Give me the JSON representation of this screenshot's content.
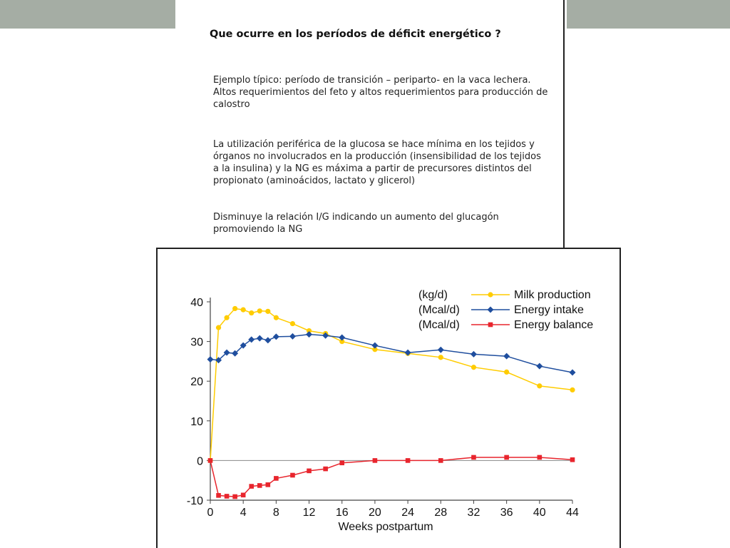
{
  "slide": {
    "title": "Que ocurre en los períodos de déficit energético ?",
    "paragraphs": [
      "Ejemplo típico: período de transición – periparto- en la vaca lechera. Altos requerimientos del feto y altos requerimientos para producción de calostro",
      "La utilización periférica de la glucosa se hace mínima en los tejidos y órganos no involucrados en la producción (insensibilidad de los tejidos a la insulina) y la NG es máxima a partir de precursores distintos del propionato (aminoácidos, lactato y glicerol)",
      "Disminuye la relación I/G indicando un aumento del glucagón promoviendo la NG"
    ]
  },
  "theme": {
    "deco_bar": "#a5ada4",
    "milk": "#ffcc00",
    "energy_intake": "#1f4e9e",
    "energy_balance": "#e8252d"
  },
  "chart_data": {
    "type": "line",
    "title": "",
    "xlabel": "Weeks postpartum",
    "ylabel": "",
    "xlim": [
      0,
      44
    ],
    "ylim": [
      -10,
      40
    ],
    "xticks": [
      0,
      4,
      8,
      12,
      16,
      20,
      24,
      28,
      32,
      36,
      40,
      44
    ],
    "yticks": [
      -10,
      0,
      10,
      20,
      30,
      40
    ],
    "reference_line_y": 0,
    "grid": false,
    "legend_position": "top-right",
    "series": [
      {
        "name": "Milk production",
        "unit": "(kg/d)",
        "color_key": "milk",
        "marker": "circle",
        "x": [
          0,
          1,
          2,
          3,
          4,
          5,
          6,
          7,
          8,
          10,
          12,
          14,
          16,
          20,
          24,
          28,
          32,
          36,
          40,
          44
        ],
        "y": [
          0,
          33.5,
          36,
          38.3,
          38,
          37.2,
          37.7,
          37.6,
          36,
          34.5,
          32.7,
          32,
          30,
          28,
          27,
          26,
          23.5,
          22.3,
          18.8,
          17.8
        ]
      },
      {
        "name": "Energy intake",
        "unit": "(Mcal/d)",
        "color_key": "energy_intake",
        "marker": "diamond",
        "x": [
          0,
          1,
          2,
          3,
          4,
          5,
          6,
          7,
          8,
          10,
          12,
          14,
          16,
          20,
          24,
          28,
          32,
          36,
          40,
          44
        ],
        "y": [
          25.5,
          25.3,
          27.2,
          27,
          29,
          30.5,
          30.8,
          30.3,
          31.2,
          31.3,
          31.8,
          31.5,
          31,
          29,
          27.2,
          27.9,
          26.8,
          26.3,
          23.8,
          22.2
        ]
      },
      {
        "name": "Energy balance",
        "unit": "(Mcal/d)",
        "color_key": "energy_balance",
        "marker": "square",
        "x": [
          0,
          1,
          2,
          3,
          4,
          5,
          6,
          7,
          8,
          10,
          12,
          14,
          16,
          20,
          24,
          28,
          32,
          36,
          40,
          44
        ],
        "y": [
          0,
          -8.8,
          -9,
          -9.1,
          -8.7,
          -6.5,
          -6.3,
          -6.1,
          -4.5,
          -3.7,
          -2.6,
          -2.1,
          -0.6,
          0,
          0,
          0,
          0.8,
          0.8,
          0.8,
          0.2
        ]
      }
    ]
  }
}
